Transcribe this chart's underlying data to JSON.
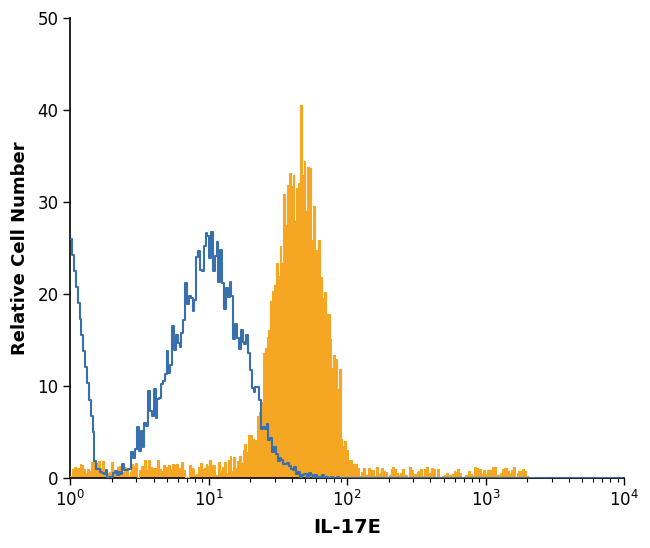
{
  "title": "",
  "xlabel": "IL-17E",
  "ylabel": "Relative Cell Number",
  "xlim_log": [
    0,
    4
  ],
  "ylim": [
    0,
    50
  ],
  "yticks": [
    0,
    10,
    20,
    30,
    40,
    50
  ],
  "background_color": "#ffffff",
  "blue_color": "#3a6fad",
  "orange_color": "#f5a623",
  "xlabel_fontsize": 14,
  "ylabel_fontsize": 13,
  "tick_fontsize": 12
}
